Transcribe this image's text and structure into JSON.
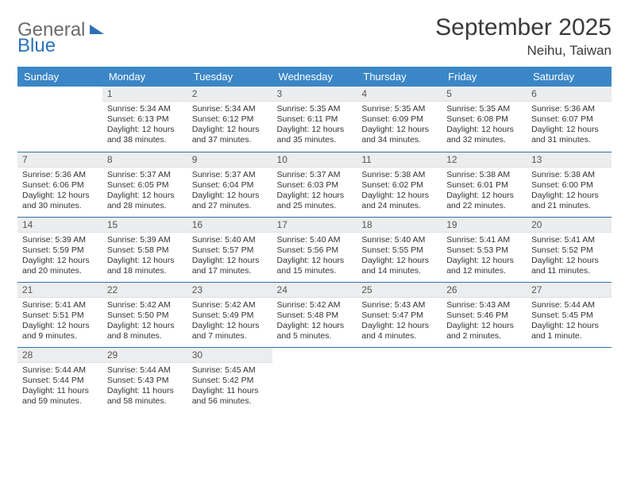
{
  "brand": {
    "part1": "General",
    "part2": "Blue"
  },
  "title": "September 2025",
  "location": "Neihu, Taiwan",
  "colors": {
    "header_bg": "#3b86c6",
    "header_text": "#ffffff",
    "daynum_bg": "#ecedee",
    "row_border": "#2f6fa8",
    "text": "#333333",
    "title_text": "#3a3a3a",
    "logo_gray": "#6b6b6b",
    "logo_blue": "#2a71b8",
    "background": "#ffffff"
  },
  "typography": {
    "title_fontsize": 30,
    "location_fontsize": 17,
    "dayhead_fontsize": 13,
    "daynum_fontsize": 12,
    "cell_fontsize": 10.5
  },
  "day_headers": [
    "Sunday",
    "Monday",
    "Tuesday",
    "Wednesday",
    "Thursday",
    "Friday",
    "Saturday"
  ],
  "weeks": [
    [
      {
        "n": "",
        "sr": "",
        "ss": "",
        "dl1": "",
        "dl2": ""
      },
      {
        "n": "1",
        "sr": "Sunrise: 5:34 AM",
        "ss": "Sunset: 6:13 PM",
        "dl1": "Daylight: 12 hours",
        "dl2": "and 38 minutes."
      },
      {
        "n": "2",
        "sr": "Sunrise: 5:34 AM",
        "ss": "Sunset: 6:12 PM",
        "dl1": "Daylight: 12 hours",
        "dl2": "and 37 minutes."
      },
      {
        "n": "3",
        "sr": "Sunrise: 5:35 AM",
        "ss": "Sunset: 6:11 PM",
        "dl1": "Daylight: 12 hours",
        "dl2": "and 35 minutes."
      },
      {
        "n": "4",
        "sr": "Sunrise: 5:35 AM",
        "ss": "Sunset: 6:09 PM",
        "dl1": "Daylight: 12 hours",
        "dl2": "and 34 minutes."
      },
      {
        "n": "5",
        "sr": "Sunrise: 5:35 AM",
        "ss": "Sunset: 6:08 PM",
        "dl1": "Daylight: 12 hours",
        "dl2": "and 32 minutes."
      },
      {
        "n": "6",
        "sr": "Sunrise: 5:36 AM",
        "ss": "Sunset: 6:07 PM",
        "dl1": "Daylight: 12 hours",
        "dl2": "and 31 minutes."
      }
    ],
    [
      {
        "n": "7",
        "sr": "Sunrise: 5:36 AM",
        "ss": "Sunset: 6:06 PM",
        "dl1": "Daylight: 12 hours",
        "dl2": "and 30 minutes."
      },
      {
        "n": "8",
        "sr": "Sunrise: 5:37 AM",
        "ss": "Sunset: 6:05 PM",
        "dl1": "Daylight: 12 hours",
        "dl2": "and 28 minutes."
      },
      {
        "n": "9",
        "sr": "Sunrise: 5:37 AM",
        "ss": "Sunset: 6:04 PM",
        "dl1": "Daylight: 12 hours",
        "dl2": "and 27 minutes."
      },
      {
        "n": "10",
        "sr": "Sunrise: 5:37 AM",
        "ss": "Sunset: 6:03 PM",
        "dl1": "Daylight: 12 hours",
        "dl2": "and 25 minutes."
      },
      {
        "n": "11",
        "sr": "Sunrise: 5:38 AM",
        "ss": "Sunset: 6:02 PM",
        "dl1": "Daylight: 12 hours",
        "dl2": "and 24 minutes."
      },
      {
        "n": "12",
        "sr": "Sunrise: 5:38 AM",
        "ss": "Sunset: 6:01 PM",
        "dl1": "Daylight: 12 hours",
        "dl2": "and 22 minutes."
      },
      {
        "n": "13",
        "sr": "Sunrise: 5:38 AM",
        "ss": "Sunset: 6:00 PM",
        "dl1": "Daylight: 12 hours",
        "dl2": "and 21 minutes."
      }
    ],
    [
      {
        "n": "14",
        "sr": "Sunrise: 5:39 AM",
        "ss": "Sunset: 5:59 PM",
        "dl1": "Daylight: 12 hours",
        "dl2": "and 20 minutes."
      },
      {
        "n": "15",
        "sr": "Sunrise: 5:39 AM",
        "ss": "Sunset: 5:58 PM",
        "dl1": "Daylight: 12 hours",
        "dl2": "and 18 minutes."
      },
      {
        "n": "16",
        "sr": "Sunrise: 5:40 AM",
        "ss": "Sunset: 5:57 PM",
        "dl1": "Daylight: 12 hours",
        "dl2": "and 17 minutes."
      },
      {
        "n": "17",
        "sr": "Sunrise: 5:40 AM",
        "ss": "Sunset: 5:56 PM",
        "dl1": "Daylight: 12 hours",
        "dl2": "and 15 minutes."
      },
      {
        "n": "18",
        "sr": "Sunrise: 5:40 AM",
        "ss": "Sunset: 5:55 PM",
        "dl1": "Daylight: 12 hours",
        "dl2": "and 14 minutes."
      },
      {
        "n": "19",
        "sr": "Sunrise: 5:41 AM",
        "ss": "Sunset: 5:53 PM",
        "dl1": "Daylight: 12 hours",
        "dl2": "and 12 minutes."
      },
      {
        "n": "20",
        "sr": "Sunrise: 5:41 AM",
        "ss": "Sunset: 5:52 PM",
        "dl1": "Daylight: 12 hours",
        "dl2": "and 11 minutes."
      }
    ],
    [
      {
        "n": "21",
        "sr": "Sunrise: 5:41 AM",
        "ss": "Sunset: 5:51 PM",
        "dl1": "Daylight: 12 hours",
        "dl2": "and 9 minutes."
      },
      {
        "n": "22",
        "sr": "Sunrise: 5:42 AM",
        "ss": "Sunset: 5:50 PM",
        "dl1": "Daylight: 12 hours",
        "dl2": "and 8 minutes."
      },
      {
        "n": "23",
        "sr": "Sunrise: 5:42 AM",
        "ss": "Sunset: 5:49 PM",
        "dl1": "Daylight: 12 hours",
        "dl2": "and 7 minutes."
      },
      {
        "n": "24",
        "sr": "Sunrise: 5:42 AM",
        "ss": "Sunset: 5:48 PM",
        "dl1": "Daylight: 12 hours",
        "dl2": "and 5 minutes."
      },
      {
        "n": "25",
        "sr": "Sunrise: 5:43 AM",
        "ss": "Sunset: 5:47 PM",
        "dl1": "Daylight: 12 hours",
        "dl2": "and 4 minutes."
      },
      {
        "n": "26",
        "sr": "Sunrise: 5:43 AM",
        "ss": "Sunset: 5:46 PM",
        "dl1": "Daylight: 12 hours",
        "dl2": "and 2 minutes."
      },
      {
        "n": "27",
        "sr": "Sunrise: 5:44 AM",
        "ss": "Sunset: 5:45 PM",
        "dl1": "Daylight: 12 hours",
        "dl2": "and 1 minute."
      }
    ],
    [
      {
        "n": "28",
        "sr": "Sunrise: 5:44 AM",
        "ss": "Sunset: 5:44 PM",
        "dl1": "Daylight: 11 hours",
        "dl2": "and 59 minutes."
      },
      {
        "n": "29",
        "sr": "Sunrise: 5:44 AM",
        "ss": "Sunset: 5:43 PM",
        "dl1": "Daylight: 11 hours",
        "dl2": "and 58 minutes."
      },
      {
        "n": "30",
        "sr": "Sunrise: 5:45 AM",
        "ss": "Sunset: 5:42 PM",
        "dl1": "Daylight: 11 hours",
        "dl2": "and 56 minutes."
      },
      {
        "n": "",
        "sr": "",
        "ss": "",
        "dl1": "",
        "dl2": ""
      },
      {
        "n": "",
        "sr": "",
        "ss": "",
        "dl1": "",
        "dl2": ""
      },
      {
        "n": "",
        "sr": "",
        "ss": "",
        "dl1": "",
        "dl2": ""
      },
      {
        "n": "",
        "sr": "",
        "ss": "",
        "dl1": "",
        "dl2": ""
      }
    ]
  ]
}
